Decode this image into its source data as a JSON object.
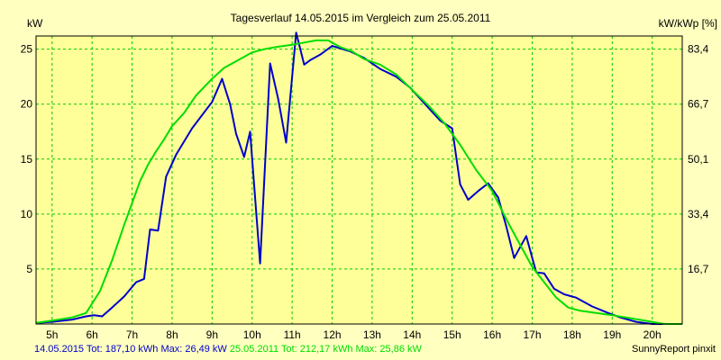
{
  "chart_data": {
    "type": "line",
    "title": "Tagesverlauf 14.05.2015 im Vergleich zum 25.05.2011",
    "ylabel_left": "kW",
    "ylabel_right": "kW/kWp [%]",
    "xlim": [
      4.6,
      20.75
    ],
    "ylim": [
      0,
      26.2
    ],
    "x_ticks": [
      5,
      6,
      7,
      8,
      9,
      10,
      11,
      12,
      13,
      14,
      15,
      16,
      17,
      18,
      19,
      20
    ],
    "x_tick_labels": [
      "5h",
      "6h",
      "7h",
      "8h",
      "9h",
      "10h",
      "11h",
      "12h",
      "13h",
      "14h",
      "15h",
      "16h",
      "17h",
      "18h",
      "19h",
      "20h"
    ],
    "y_ticks": [
      5,
      10,
      15,
      20,
      25
    ],
    "y_tick_labels": [
      "5",
      "10",
      "15",
      "20",
      "25"
    ],
    "y2_ticks": [
      5,
      10,
      15,
      20,
      25
    ],
    "y2_tick_labels": [
      "16,7",
      "33,4",
      "50,1",
      "66,7",
      "83,4"
    ],
    "grid": true,
    "colors": {
      "background": "#ffffc0",
      "plot_background": "#ffff99",
      "grid": "#00cc00",
      "series_2015": "#0000cc",
      "series_2011": "#00dd00"
    },
    "series": [
      {
        "name": "14.05.2015",
        "color": "#0000cc",
        "x": [
          4.6,
          5.0,
          5.5,
          5.85,
          6.05,
          6.25,
          6.5,
          6.8,
          7.1,
          7.3,
          7.45,
          7.65,
          7.85,
          8.1,
          8.5,
          9.0,
          9.25,
          9.45,
          9.6,
          9.8,
          9.95,
          10.2,
          10.45,
          10.65,
          10.85,
          11.1,
          11.3,
          11.45,
          11.7,
          12.0,
          12.45,
          12.8,
          13.2,
          13.6,
          13.95,
          14.4,
          14.7,
          15.0,
          15.2,
          15.4,
          15.65,
          15.9,
          16.15,
          16.35,
          16.55,
          16.85,
          17.1,
          17.3,
          17.55,
          17.8,
          18.1,
          18.5,
          18.9,
          19.2,
          19.6,
          20.0,
          20.3,
          20.75
        ],
        "y": [
          0.1,
          0.2,
          0.4,
          0.7,
          0.8,
          0.7,
          1.5,
          2.5,
          3.8,
          4.1,
          8.6,
          8.5,
          13.4,
          15.4,
          17.8,
          20.2,
          22.3,
          20.0,
          17.3,
          15.2,
          17.5,
          5.5,
          23.7,
          20.5,
          16.5,
          26.5,
          23.6,
          24.0,
          24.5,
          25.3,
          24.8,
          24.2,
          23.2,
          22.5,
          21.5,
          19.7,
          18.5,
          17.8,
          12.7,
          11.3,
          12.1,
          12.8,
          11.5,
          8.9,
          6.0,
          8.0,
          4.7,
          4.6,
          3.2,
          2.7,
          2.4,
          1.6,
          1.0,
          0.6,
          0.2,
          0.0,
          0.0,
          0.0
        ]
      },
      {
        "name": "25.05.2011",
        "color": "#00dd00",
        "x": [
          4.6,
          5.0,
          5.5,
          5.85,
          6.2,
          6.5,
          6.8,
          7.0,
          7.2,
          7.4,
          7.6,
          7.8,
          8.0,
          8.3,
          8.6,
          9.0,
          9.3,
          9.7,
          10.0,
          10.3,
          10.6,
          11.0,
          11.3,
          11.6,
          11.9,
          12.2,
          12.5,
          12.8,
          13.2,
          13.6,
          14.0,
          14.4,
          14.8,
          15.2,
          15.6,
          16.0,
          16.4,
          16.7,
          17.0,
          17.3,
          17.6,
          17.9,
          18.2,
          18.6,
          19.0,
          19.5,
          20.0,
          20.3,
          20.75
        ],
        "y": [
          0.1,
          0.3,
          0.6,
          1.0,
          3.0,
          5.8,
          9.0,
          11.0,
          13.0,
          14.5,
          15.7,
          16.8,
          18.0,
          19.2,
          20.8,
          22.3,
          23.3,
          24.1,
          24.7,
          25.0,
          25.2,
          25.4,
          25.6,
          25.8,
          25.8,
          25.2,
          24.8,
          24.1,
          23.6,
          22.7,
          21.3,
          19.9,
          18.3,
          16.3,
          14.0,
          12.1,
          9.2,
          7.2,
          5.2,
          3.8,
          2.4,
          1.5,
          1.2,
          1.0,
          0.8,
          0.5,
          0.2,
          0.0,
          0.0
        ]
      }
    ]
  },
  "footer": {
    "series1_summary": "14.05.2015 Tot: 187,10 kWh Max: 26,49 kW",
    "series2_summary": "25.05.2011 Tot: 212,17 kWh Max: 25,86 kW",
    "credit": "SunnyReport pinxit"
  }
}
